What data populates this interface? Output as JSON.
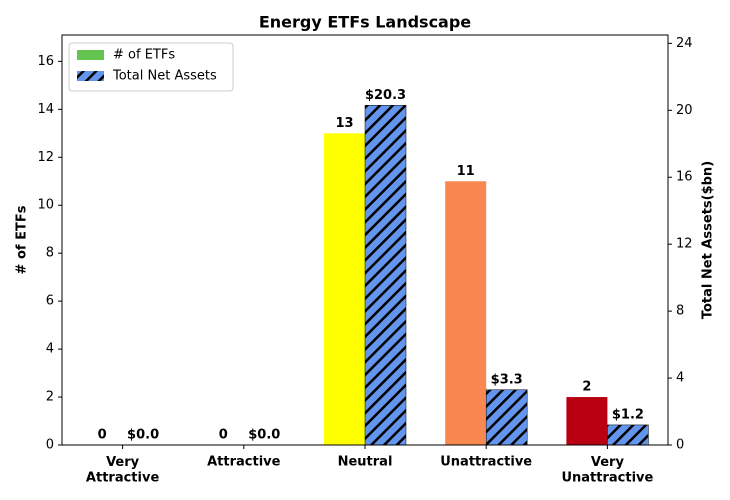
{
  "chart_data": {
    "type": "bar",
    "title": "Energy ETFs Landscape",
    "categories": [
      "Very\nAttractive",
      "Attractive",
      "Neutral",
      "Unattractive",
      "Very\nUnattractive"
    ],
    "ylabel": "# of ETFs",
    "y2label": "Total Net Assets($bn)",
    "ylim": [
      0,
      17.1
    ],
    "yticks": [
      0,
      2,
      4,
      6,
      8,
      10,
      12,
      14,
      16
    ],
    "y2lim": [
      0,
      24.5
    ],
    "y2ticks": [
      0,
      4,
      8,
      12,
      16,
      20,
      24
    ],
    "legend": "upper left",
    "series": [
      {
        "name": "# of ETFs",
        "color": "#63c54f",
        "colors": [
          "#63c54f",
          "#a6d96a",
          "#ffff00",
          "#f98850",
          "#b80012"
        ],
        "values": [
          0,
          0,
          13,
          11,
          2
        ]
      },
      {
        "name": "Total Net Assets",
        "color": "#6495ed",
        "hatch": "//",
        "axis": "y2",
        "values": [
          0.0,
          0.0,
          20.3,
          3.3,
          1.2
        ],
        "value_labels": [
          "$0.0",
          "$0.0",
          "$20.3",
          "$3.3",
          "$1.2"
        ]
      }
    ]
  }
}
